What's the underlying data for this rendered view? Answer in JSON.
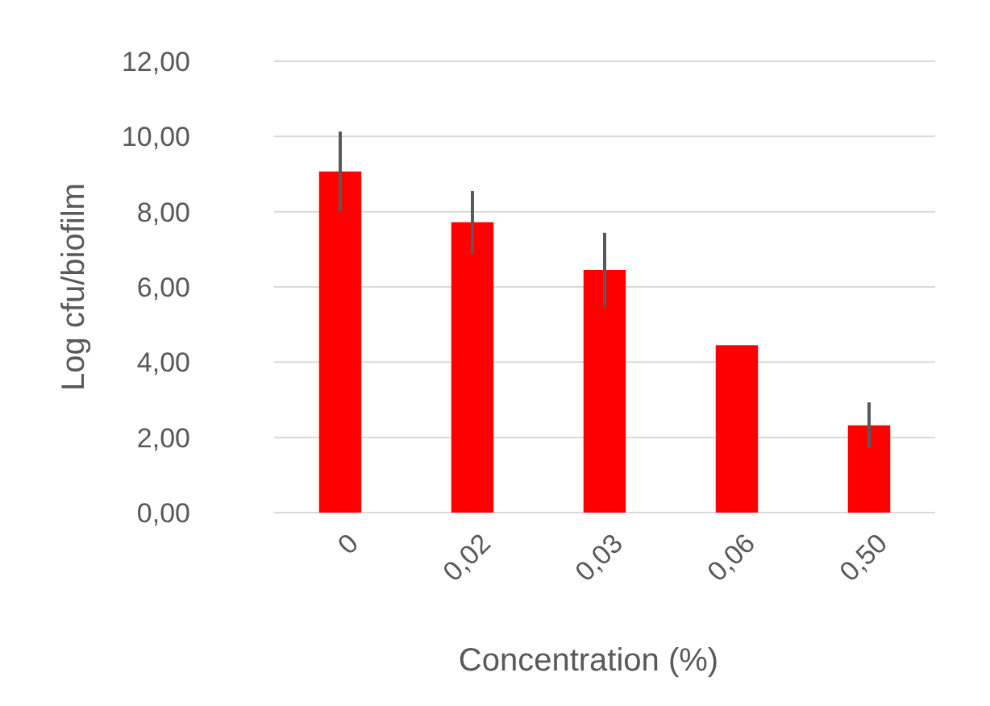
{
  "chart_data": {
    "type": "bar",
    "xlabel": "Concentration (%)",
    "ylabel": "Log cfu/biofilm",
    "categories": [
      "0",
      "0,02",
      "0,03",
      "0,06",
      "0,50"
    ],
    "values": [
      9.07,
      7.72,
      6.45,
      4.45,
      2.32
    ],
    "errors": [
      1.06,
      0.83,
      0.99,
      null,
      0.61
    ],
    "color": "#ff0000",
    "ylim": [
      0,
      12
    ],
    "yticks": [
      {
        "value": 0,
        "label": "0,00"
      },
      {
        "value": 2,
        "label": "2,00"
      },
      {
        "value": 4,
        "label": "4,00"
      },
      {
        "value": 6,
        "label": "6,00"
      },
      {
        "value": 8,
        "label": "8,00"
      },
      {
        "value": 10,
        "label": "10,00"
      },
      {
        "value": 12,
        "label": "12,00"
      }
    ],
    "grid": "y"
  }
}
